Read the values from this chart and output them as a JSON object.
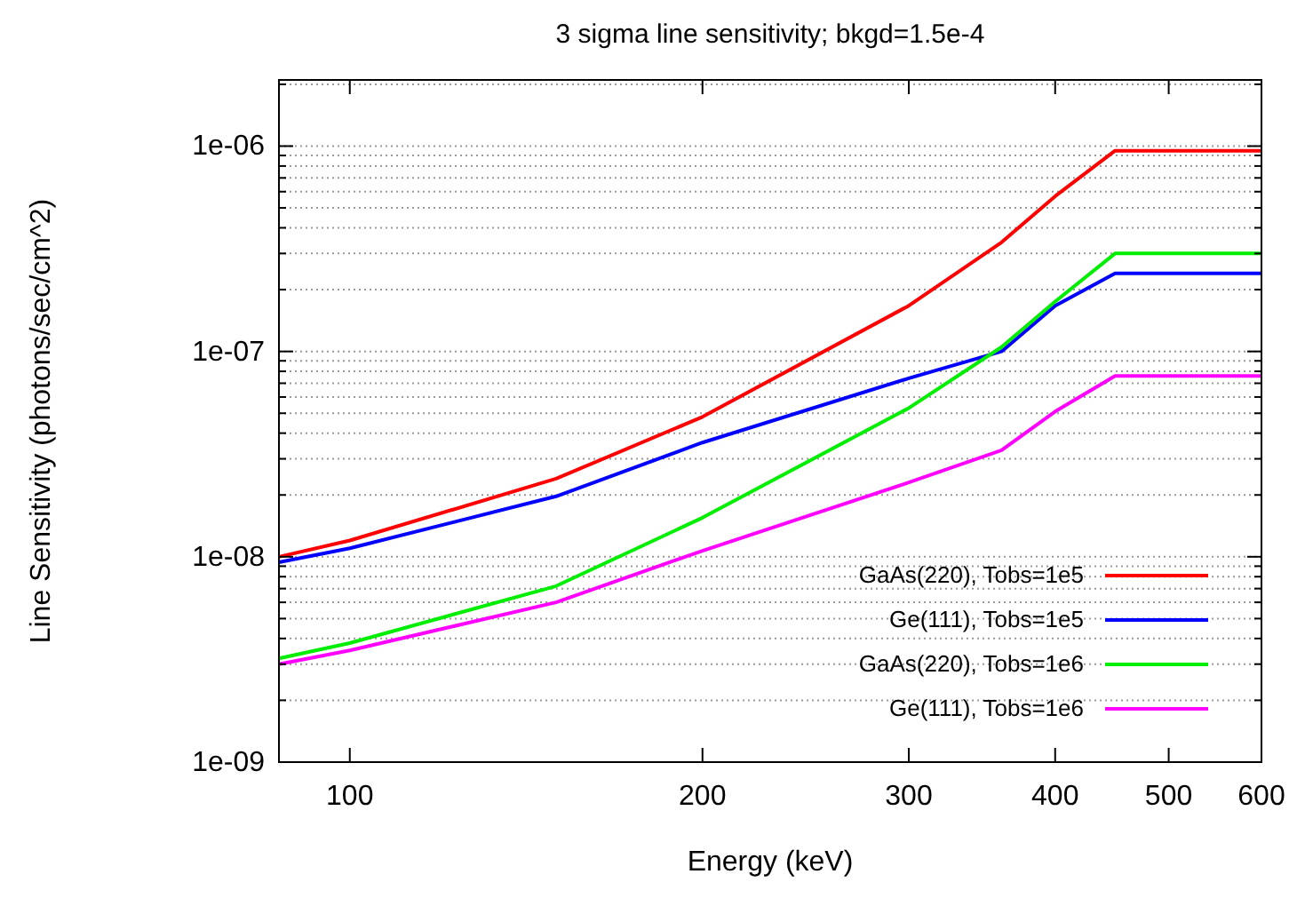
{
  "chart_data": {
    "type": "line",
    "title": "3 sigma line sensitivity; bkgd=1.5e-4",
    "xlabel": "Energy (keV)",
    "ylabel": "Line Sensitivity (photons/sec/cm^2)",
    "log": "xy",
    "grid": "y",
    "legend": "bottom right",
    "line_style": "solid",
    "marker": "none",
    "xlim": [
      87,
      600
    ],
    "xticks": [
      100,
      200,
      300,
      400,
      500,
      600
    ],
    "ylim": [
      1e-09,
      2.1e-06
    ],
    "yticks": [
      {
        "value": 1e-09,
        "label": "1e-09"
      },
      {
        "value": 2e-09,
        "label": null
      },
      {
        "value": 3e-09,
        "label": null
      },
      {
        "value": 4e-09,
        "label": null
      },
      {
        "value": 5e-09,
        "label": null
      },
      {
        "value": 6e-09,
        "label": null
      },
      {
        "value": 7e-09,
        "label": null
      },
      {
        "value": 8e-09,
        "label": null
      },
      {
        "value": 9e-09,
        "label": null
      },
      {
        "value": 1e-08,
        "label": "1e-08"
      },
      {
        "value": 2e-08,
        "label": null
      },
      {
        "value": 3e-08,
        "label": null
      },
      {
        "value": 4e-08,
        "label": null
      },
      {
        "value": 5e-08,
        "label": null
      },
      {
        "value": 6e-08,
        "label": null
      },
      {
        "value": 7e-08,
        "label": null
      },
      {
        "value": 8e-08,
        "label": null
      },
      {
        "value": 9e-08,
        "label": null
      },
      {
        "value": 1e-07,
        "label": "1e-07"
      },
      {
        "value": 2e-07,
        "label": null
      },
      {
        "value": 3e-07,
        "label": null
      },
      {
        "value": 4e-07,
        "label": null
      },
      {
        "value": 5e-07,
        "label": null
      },
      {
        "value": 6e-07,
        "label": null
      },
      {
        "value": 7e-07,
        "label": null
      },
      {
        "value": 8e-07,
        "label": null
      },
      {
        "value": 9e-07,
        "label": null
      },
      {
        "value": 1e-06,
        "label": "1e-06"
      },
      {
        "value": 2e-06,
        "label": null
      }
    ],
    "x": [
      87,
      100,
      150,
      200,
      300,
      360,
      400,
      450,
      600
    ],
    "series": [
      {
        "name": "GaAs(220), Tobs=1e5",
        "color": "#ff0000",
        "values": [
          1e-08,
          1.2e-08,
          2.4e-08,
          4.8e-08,
          1.67e-07,
          3.4e-07,
          5.7e-07,
          9.5e-07,
          9.5e-07
        ]
      },
      {
        "name": "Ge(111), Tobs=1e5",
        "color": "#0000ff",
        "values": [
          9.4e-09,
          1.1e-08,
          1.97e-08,
          3.6e-08,
          7.4e-08,
          1e-07,
          1.67e-07,
          2.4e-07,
          2.4e-07
        ]
      },
      {
        "name": "GaAs(220), Tobs=1e6",
        "color": "#00ee00",
        "values": [
          3.2e-09,
          3.8e-09,
          7.2e-09,
          1.55e-08,
          5.3e-08,
          1.05e-07,
          1.75e-07,
          3e-07,
          3e-07
        ]
      },
      {
        "name": "Ge(111), Tobs=1e6",
        "color": "#ff00ff",
        "values": [
          3e-09,
          3.5e-09,
          6e-09,
          1.07e-08,
          2.3e-08,
          3.3e-08,
          5.1e-08,
          7.6e-08,
          7.6e-08
        ]
      }
    ]
  }
}
